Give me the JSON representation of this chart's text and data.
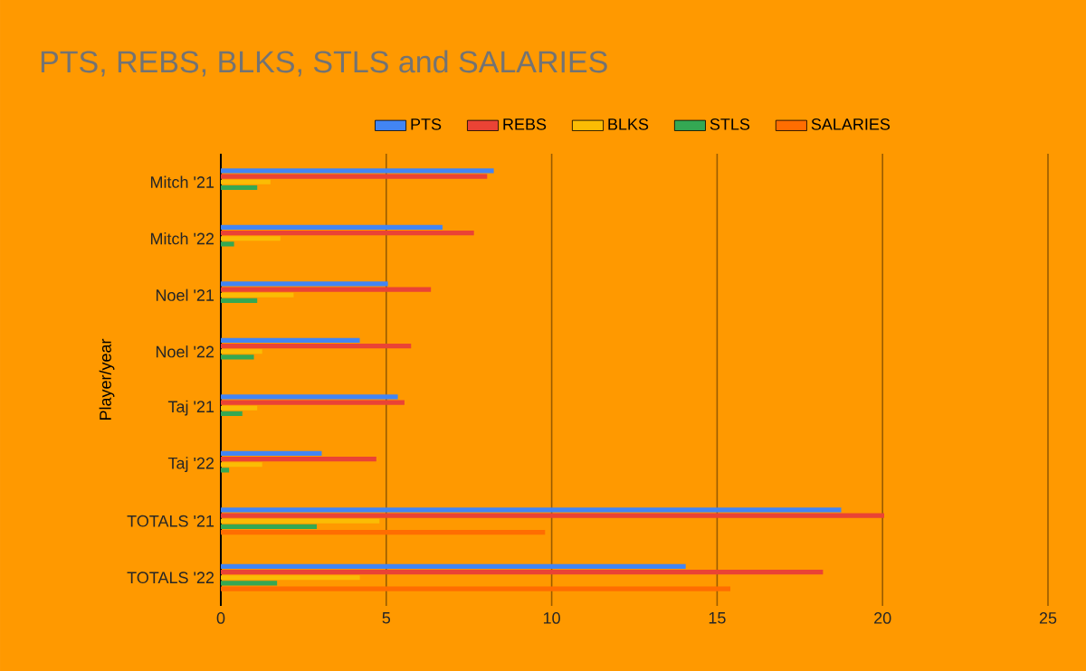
{
  "chart_data": {
    "type": "bar",
    "orientation": "horizontal",
    "title": "PTS, REBS, BLKS, STLS and SALARIES",
    "ylabel": "Player/year",
    "categories": [
      "Mitch '21",
      "Mitch '22",
      "Noel '21",
      "Noel '22",
      "Taj '21",
      "Taj '22",
      "TOTALS '21",
      "TOTALS '22"
    ],
    "series": [
      {
        "name": "PTS",
        "color": "#4285f4",
        "values": [
          8.25,
          6.7,
          5.05,
          4.2,
          5.35,
          3.05,
          18.75,
          14.05
        ]
      },
      {
        "name": "REBS",
        "color": "#ea4335",
        "values": [
          8.05,
          7.65,
          6.35,
          5.75,
          5.55,
          4.7,
          20.05,
          18.2
        ]
      },
      {
        "name": "BLKS",
        "color": "#fbbc04",
        "values": [
          1.5,
          1.8,
          2.2,
          1.25,
          1.1,
          1.25,
          4.8,
          4.2
        ]
      },
      {
        "name": "STLS",
        "color": "#34a853",
        "values": [
          1.1,
          0.4,
          1.1,
          1.0,
          0.65,
          0.25,
          2.9,
          1.7
        ]
      },
      {
        "name": "SALARIES",
        "color": "#ff6d01",
        "values": [
          null,
          null,
          null,
          null,
          null,
          null,
          9.8,
          15.4
        ]
      }
    ],
    "xlim": [
      0,
      25
    ],
    "xticks": [
      0,
      5,
      10,
      15,
      20,
      25
    ],
    "grid": "x",
    "legend": "top"
  }
}
